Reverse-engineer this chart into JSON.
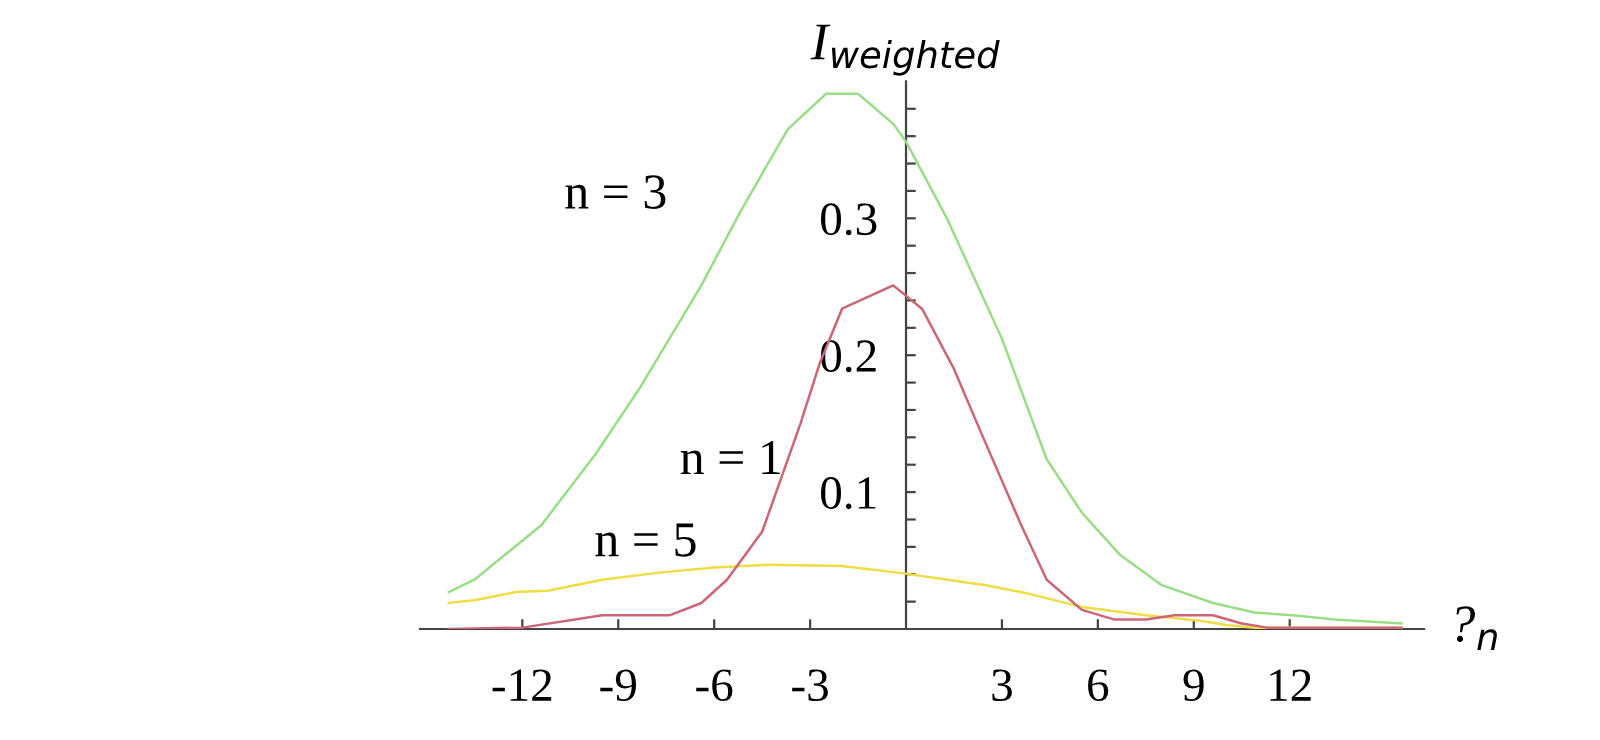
{
  "chart_data": {
    "type": "line",
    "xlabel": "?$_{n}$",
    "ylabel": "I$_{weighted}$",
    "xlim": [
      -15.2,
      16.2
    ],
    "ylim": [
      0,
      0.4
    ],
    "xticks": [
      -12,
      -9,
      -6,
      -3,
      3,
      6,
      9,
      12
    ],
    "yticks": [
      {
        "value": 0.02,
        "label": null
      },
      {
        "value": 0.04,
        "label": null
      },
      {
        "value": 0.06,
        "label": null
      },
      {
        "value": 0.08,
        "label": null
      },
      0.1,
      {
        "value": 0.12,
        "label": null
      },
      {
        "value": 0.14,
        "label": null
      },
      {
        "value": 0.16,
        "label": null
      },
      {
        "value": 0.18,
        "label": null
      },
      0.2,
      {
        "value": 0.22,
        "label": null
      },
      {
        "value": 0.24,
        "label": null
      },
      {
        "value": 0.26,
        "label": null
      },
      {
        "value": 0.28,
        "label": null
      },
      0.3,
      {
        "value": 0.32,
        "label": null
      },
      {
        "value": 0.34,
        "label": null
      },
      {
        "value": 0.36,
        "label": null
      },
      {
        "value": 0.38,
        "label": null
      }
    ],
    "grid": false,
    "legend": false,
    "marker": "none",
    "line_style": "solid",
    "series": [
      {
        "color": "#99dd88",
        "x": [
          -14.3,
          -13.5,
          -11.4,
          -9.7,
          -8.3,
          -6.4,
          -5.2,
          -3.7,
          -2.5,
          -1.5,
          -0.4,
          0,
          1.3,
          3.0,
          4.4,
          5.5,
          6.7,
          8.0,
          9.6,
          10.9,
          12.1,
          13.4,
          15.5
        ],
        "values": [
          0.027,
          0.036,
          0.076,
          0.128,
          0.177,
          0.251,
          0.304,
          0.365,
          0.391,
          0.391,
          0.369,
          0.356,
          0.299,
          0.212,
          0.124,
          0.085,
          0.054,
          0.032,
          0.019,
          0.012,
          0.01,
          0.007,
          0.004
        ]
      },
      {
        "color": "#cc6677",
        "x": [
          -14.3,
          -12,
          -9.5,
          -7.4,
          -6.4,
          -5.6,
          -4.5,
          -3.3,
          -2.7,
          -2.0,
          -0.4,
          0.5,
          1.5,
          2.3,
          3.6,
          4.4,
          5.5,
          6.5,
          7.5,
          8.4,
          9.6,
          10.5,
          11.3,
          15.5
        ],
        "values": [
          0.0,
          0.001,
          0.01,
          0.01,
          0.019,
          0.036,
          0.071,
          0.15,
          0.194,
          0.234,
          0.251,
          0.234,
          0.19,
          0.146,
          0.076,
          0.036,
          0.014,
          0.007,
          0.007,
          0.01,
          0.01,
          0.004,
          0.001,
          0.001
        ]
      },
      {
        "color": "#eedd44",
        "x": [
          -14.3,
          -13.5,
          -12.2,
          -11.2,
          -9.5,
          -7.8,
          -6.0,
          -4.3,
          -2.0,
          -0.2,
          1.3,
          2.5,
          3.8,
          5.5,
          7.5,
          9.2,
          10.0,
          10.9,
          15.5
        ],
        "values": [
          0.019,
          0.021,
          0.027,
          0.028,
          0.036,
          0.041,
          0.045,
          0.047,
          0.046,
          0.041,
          0.036,
          0.032,
          0.026,
          0.016,
          0.01,
          0.006,
          0.003,
          0.001,
          0.001
        ]
      }
    ],
    "annotations": [
      "n = 3",
      "n = 1",
      "n = 5"
    ]
  }
}
